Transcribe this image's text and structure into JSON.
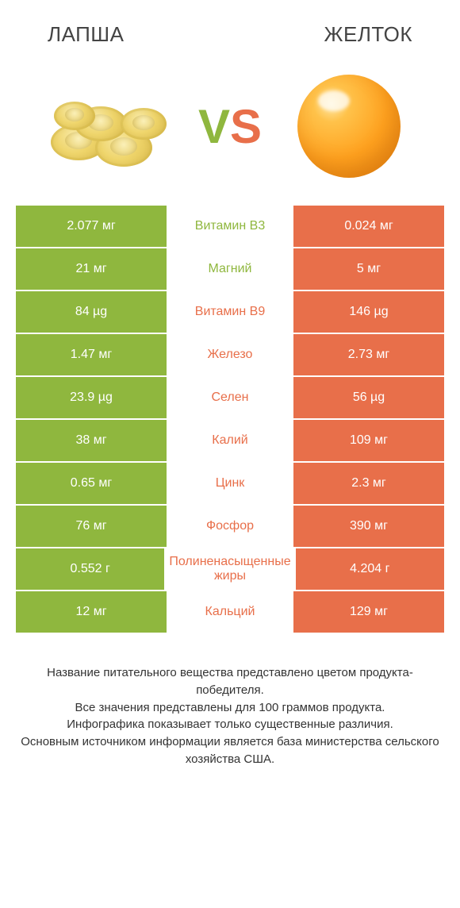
{
  "header": {
    "left_title": "ЛАПША",
    "right_title": "ЖЕЛТОК",
    "vs_v": "V",
    "vs_s": "S"
  },
  "colors": {
    "green": "#8fb73e",
    "orange": "#e86f4a",
    "mid_green_text": "#8fb73e",
    "mid_orange_text": "#e86f4a",
    "white": "#ffffff"
  },
  "comparison": {
    "type": "table",
    "rows": [
      {
        "left": "2.077 мг",
        "label": "Витамин B3",
        "right": "0.024 мг",
        "winner": "left"
      },
      {
        "left": "21 мг",
        "label": "Магний",
        "right": "5 мг",
        "winner": "left"
      },
      {
        "left": "84 µg",
        "label": "Витамин B9",
        "right": "146 µg",
        "winner": "right"
      },
      {
        "left": "1.47 мг",
        "label": "Железо",
        "right": "2.73 мг",
        "winner": "right"
      },
      {
        "left": "23.9 µg",
        "label": "Селен",
        "right": "56 µg",
        "winner": "right"
      },
      {
        "left": "38 мг",
        "label": "Калий",
        "right": "109 мг",
        "winner": "right"
      },
      {
        "left": "0.65 мг",
        "label": "Цинк",
        "right": "2.3 мг",
        "winner": "right"
      },
      {
        "left": "76 мг",
        "label": "Фосфор",
        "right": "390 мг",
        "winner": "right"
      },
      {
        "left": "0.552 г",
        "label": "Полиненасыщенные жиры",
        "right": "4.204 г",
        "winner": "right"
      },
      {
        "left": "12 мг",
        "label": "Кальций",
        "right": "129 мг",
        "winner": "right"
      }
    ]
  },
  "footer": {
    "line1": "Название питательного вещества представлено цветом продукта-победителя.",
    "line2": "Все значения представлены для 100 граммов продукта.",
    "line3": "Инфографика показывает только существенные различия.",
    "line4": "Основным источником информации является база министерства сельского хозяйства США."
  }
}
